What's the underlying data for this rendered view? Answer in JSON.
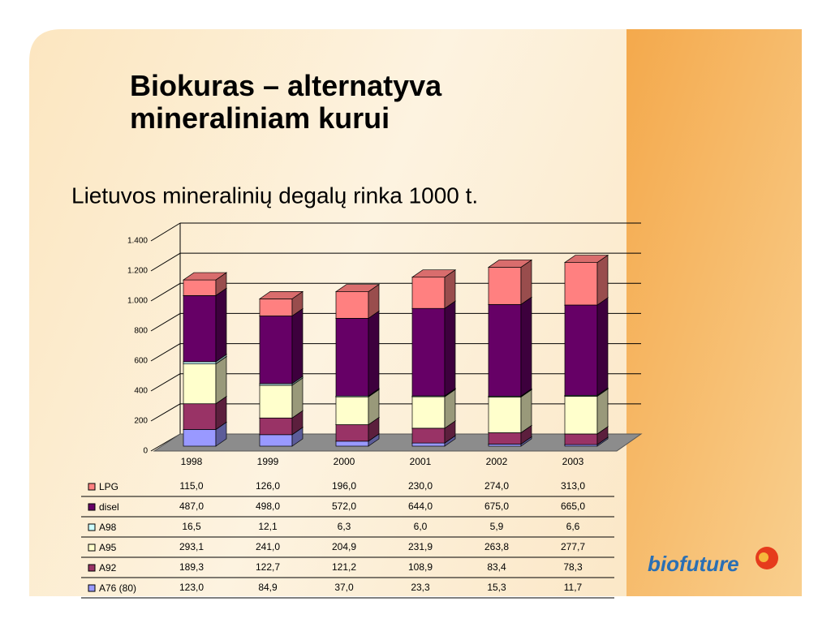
{
  "title": "Biokuras – alternatyva mineraliniam kurui",
  "logo": "biofuture",
  "chart_data": {
    "type": "bar3d-stacked",
    "title": "Lietuvos mineralinių degalų rinka 1000 t.",
    "categories": [
      "1998",
      "1999",
      "2000",
      "2001",
      "2002",
      "2003"
    ],
    "series": [
      {
        "name": "A76 (80)",
        "color": "#9999ff",
        "values": [
          123.0,
          84.9,
          37.0,
          23.3,
          15.3,
          11.7
        ],
        "value_labels": [
          "123,0",
          "84,9",
          "37,0",
          "23,3",
          "15,3",
          "11,7"
        ]
      },
      {
        "name": "A92",
        "color": "#993366",
        "values": [
          189.3,
          122.7,
          121.2,
          108.9,
          83.4,
          78.3
        ],
        "value_labels": [
          "189,3",
          "122,7",
          "121,2",
          "108,9",
          "83,4",
          "78,3"
        ]
      },
      {
        "name": "A95",
        "color": "#ffffcc",
        "values": [
          293.1,
          241.0,
          204.9,
          231.9,
          263.8,
          277.7
        ],
        "value_labels": [
          "293,1",
          "241,0",
          "204,9",
          "231,9",
          "263,8",
          "277,7"
        ]
      },
      {
        "name": "A98",
        "color": "#ccffff",
        "values": [
          16.5,
          12.1,
          6.3,
          6.0,
          5.9,
          6.6
        ],
        "value_labels": [
          "16,5",
          "12,1",
          "6,3",
          "6,0",
          "5,9",
          "6,6"
        ]
      },
      {
        "name": "disel",
        "color": "#660066",
        "values": [
          487.0,
          498.0,
          572.0,
          644.0,
          675.0,
          665.0
        ],
        "value_labels": [
          "487,0",
          "498,0",
          "572,0",
          "644,0",
          "675,0",
          "665,0"
        ]
      },
      {
        "name": "LPG",
        "color": "#ff8080",
        "values": [
          115.0,
          126.0,
          196.0,
          230.0,
          274.0,
          313.0
        ],
        "value_labels": [
          "115,0",
          "126,0",
          "196,0",
          "230,0",
          "274,0",
          "313,0"
        ]
      }
    ],
    "ylim": [
      0,
      1400
    ],
    "yticks": [
      0,
      200,
      400,
      600,
      800,
      {
        "value": 1000,
        "label": "1.000"
      },
      {
        "value": 1200,
        "label": "1.200"
      },
      {
        "value": 1400,
        "label": "1.400"
      }
    ],
    "grid": true,
    "legend": "table"
  }
}
